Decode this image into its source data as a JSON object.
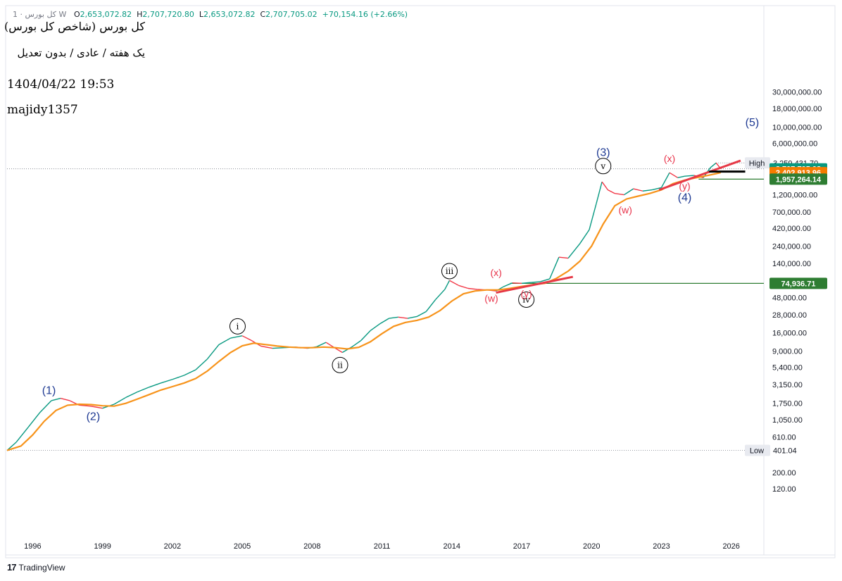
{
  "header": {
    "symbol_info": "1 · کل بورس W",
    "open_label": "O",
    "open_value": "2,653,072.82",
    "high_label": "H",
    "high_value": "2,707,720.80",
    "low_label": "L",
    "low_value": "2,653,072.82",
    "close_label": "C",
    "close_value": "2,707,705.02",
    "change": "+70,154.16 (+2.66%)"
  },
  "annotations": {
    "title": "کل بورس (شاخص کل بورس)",
    "subtitle": "یک هفته / عادی / بدون تعدیل",
    "date": "1404/04/22 19:53",
    "author": "majidy1357"
  },
  "branding": {
    "logo_text": "TradingView",
    "logo_icon": "tradingview-logo-icon"
  },
  "colors": {
    "price": "#089981",
    "price_down": "#f23645",
    "ma": "#f7931a",
    "trend": "#e63946",
    "support": "#2e7d32",
    "wave_main": "#1f3a93",
    "wave_sub": "#e8334a",
    "current": "#089981",
    "ma_badge": "#f57c00",
    "level": "#2e7d32"
  },
  "chart_data": {
    "type": "line",
    "scale": "log",
    "interval": "1 week",
    "x_ticks": [
      "1996",
      "1999",
      "2002",
      "2005",
      "2008",
      "2011",
      "2014",
      "2017",
      "2020",
      "2023",
      "2026"
    ],
    "y_ticks": [
      "30,000,000.00",
      "18,000,000.00",
      "10,000,000.00",
      "6,000,000.00",
      "1,200,000.00",
      "700,000.00",
      "420,000.00",
      "240,000.00",
      "140,000.00",
      "48,000.00",
      "28,000.00",
      "16,000.00",
      "9,000.00",
      "5,400.00",
      "3,150.00",
      "1,750.00",
      "1,050.00",
      "610.00",
      "200.00",
      "120.00"
    ],
    "ylim": [
      100,
      30000000
    ],
    "series": [
      {
        "values": [
          [
            1994.9,
            400
          ],
          [
            1995.3,
            520
          ],
          [
            1995.8,
            820
          ],
          [
            1996.3,
            1300
          ],
          [
            1996.8,
            1900
          ],
          [
            1997.2,
            2050
          ],
          [
            1997.6,
            1900
          ],
          [
            1998.0,
            1650
          ],
          [
            1998.5,
            1600
          ],
          [
            1999.0,
            1500
          ],
          [
            1999.5,
            1700
          ],
          [
            2000.0,
            2100
          ],
          [
            2000.5,
            2500
          ],
          [
            2001.0,
            2900
          ],
          [
            2001.5,
            3300
          ],
          [
            2002.0,
            3700
          ],
          [
            2002.5,
            4200
          ],
          [
            2003.0,
            5000
          ],
          [
            2003.5,
            7000
          ],
          [
            2004.0,
            11000
          ],
          [
            2004.5,
            13500
          ],
          [
            2005.0,
            14500
          ],
          [
            2005.4,
            12500
          ],
          [
            2005.8,
            10500
          ],
          [
            2006.3,
            9800
          ],
          [
            2006.8,
            10000
          ],
          [
            2007.3,
            10200
          ],
          [
            2007.8,
            9800
          ],
          [
            2008.2,
            10300
          ],
          [
            2008.6,
            11800
          ],
          [
            2009.0,
            9800
          ],
          [
            2009.3,
            8600
          ],
          [
            2009.7,
            10200
          ],
          [
            2010.1,
            12500
          ],
          [
            2010.5,
            17000
          ],
          [
            2010.9,
            21000
          ],
          [
            2011.3,
            25000
          ],
          [
            2011.7,
            26000
          ],
          [
            2012.1,
            25000
          ],
          [
            2012.5,
            26500
          ],
          [
            2012.9,
            31000
          ],
          [
            2013.3,
            45000
          ],
          [
            2013.7,
            62000
          ],
          [
            2013.9,
            82000
          ],
          [
            2014.3,
            70000
          ],
          [
            2014.7,
            64000
          ],
          [
            2015.1,
            62000
          ],
          [
            2015.5,
            61000
          ],
          [
            2015.9,
            59000
          ],
          [
            2016.2,
            67000
          ],
          [
            2016.6,
            76000
          ],
          [
            2017.0,
            75000
          ],
          [
            2017.4,
            77000
          ],
          [
            2017.8,
            79000
          ],
          [
            2018.2,
            86000
          ],
          [
            2018.6,
            170000
          ],
          [
            2019.0,
            165000
          ],
          [
            2019.5,
            260000
          ],
          [
            2019.9,
            400000
          ],
          [
            2020.2,
            900000
          ],
          [
            2020.45,
            1800000
          ],
          [
            2020.7,
            1400000
          ],
          [
            2021.0,
            1250000
          ],
          [
            2021.4,
            1200000
          ],
          [
            2021.8,
            1450000
          ],
          [
            2022.2,
            1350000
          ],
          [
            2022.6,
            1400000
          ],
          [
            2023.0,
            1500000
          ],
          [
            2023.35,
            2400000
          ],
          [
            2023.7,
            2050000
          ],
          [
            2024.0,
            2150000
          ],
          [
            2024.4,
            2200000
          ],
          [
            2024.8,
            2050000
          ],
          [
            2025.1,
            2800000
          ],
          [
            2025.35,
            3259431.7
          ],
          [
            2025.55,
            2707705.02
          ]
        ]
      },
      {
        "values": [
          [
            1994.9,
            400
          ],
          [
            1995.5,
            460
          ],
          [
            1996.0,
            650
          ],
          [
            1996.5,
            1000
          ],
          [
            1997.0,
            1400
          ],
          [
            1997.5,
            1650
          ],
          [
            1998.0,
            1700
          ],
          [
            1998.5,
            1680
          ],
          [
            1999.0,
            1620
          ],
          [
            1999.5,
            1600
          ],
          [
            2000.0,
            1750
          ],
          [
            2000.5,
            2000
          ],
          [
            2001.0,
            2300
          ],
          [
            2001.5,
            2650
          ],
          [
            2002.0,
            2950
          ],
          [
            2002.5,
            3300
          ],
          [
            2003.0,
            3800
          ],
          [
            2003.5,
            4800
          ],
          [
            2004.0,
            6500
          ],
          [
            2004.5,
            8600
          ],
          [
            2005.0,
            10600
          ],
          [
            2005.5,
            11500
          ],
          [
            2006.0,
            11000
          ],
          [
            2006.5,
            10500
          ],
          [
            2007.0,
            10200
          ],
          [
            2007.5,
            10000
          ],
          [
            2008.0,
            10000
          ],
          [
            2008.5,
            10200
          ],
          [
            2009.0,
            10000
          ],
          [
            2009.5,
            9600
          ],
          [
            2010.0,
            10100
          ],
          [
            2010.5,
            12000
          ],
          [
            2011.0,
            15500
          ],
          [
            2011.5,
            19500
          ],
          [
            2012.0,
            22000
          ],
          [
            2012.5,
            23500
          ],
          [
            2013.0,
            26000
          ],
          [
            2013.5,
            32000
          ],
          [
            2014.0,
            43000
          ],
          [
            2014.5,
            54000
          ],
          [
            2015.0,
            59000
          ],
          [
            2015.5,
            61000
          ],
          [
            2016.0,
            61000
          ],
          [
            2016.5,
            64000
          ],
          [
            2017.0,
            68000
          ],
          [
            2017.5,
            72000
          ],
          [
            2018.0,
            75000
          ],
          [
            2018.5,
            88000
          ],
          [
            2019.0,
            110000
          ],
          [
            2019.5,
            150000
          ],
          [
            2020.0,
            240000
          ],
          [
            2020.5,
            480000
          ],
          [
            2021.0,
            850000
          ],
          [
            2021.5,
            1050000
          ],
          [
            2022.0,
            1150000
          ],
          [
            2022.5,
            1250000
          ],
          [
            2023.0,
            1400000
          ],
          [
            2023.5,
            1700000
          ],
          [
            2024.0,
            1900000
          ],
          [
            2024.5,
            2050000
          ],
          [
            2025.0,
            2200000
          ],
          [
            2025.55,
            2402913.96
          ]
        ]
      }
    ],
    "price_badges": [
      {
        "label": "High",
        "value": "3,259,431.70",
        "style": "high"
      },
      {
        "value": "2,707,705.02",
        "style": "current"
      },
      {
        "value": "2,402,913.96",
        "style": "ma"
      },
      {
        "value": "1,957,264.14",
        "style": "level"
      },
      {
        "value": "74,936.71",
        "style": "level"
      },
      {
        "label": "Low",
        "value": "401.04",
        "style": "low"
      }
    ],
    "horizontal_levels": [
      {
        "value": 3259431.7,
        "style": "dotted",
        "from": 2025.35
      },
      {
        "value": 2707705.02,
        "style": "dotted",
        "from": 1994.9
      },
      {
        "value": 1957264.14,
        "style": "solid",
        "from": 2024.6
      },
      {
        "value": 74936.71,
        "style": "solid",
        "from": 2016.5
      },
      {
        "value": 401.04,
        "style": "dotted",
        "from": 1994.9
      }
    ],
    "trend_lines": [
      {
        "from": [
          2015.9,
          56000
        ],
        "to": [
          2019.2,
          92000
        ]
      },
      {
        "from": [
          2022.9,
          1400000
        ],
        "to": [
          2026.4,
          3500000
        ]
      }
    ],
    "wave_labels": [
      {
        "text": "(1)",
        "x": 1996.7,
        "y": 2600,
        "style": "main"
      },
      {
        "text": "(2)",
        "x": 1998.6,
        "y": 1150,
        "style": "main"
      },
      {
        "text": "(3)",
        "x": 2020.5,
        "y": 4500000,
        "style": "main"
      },
      {
        "text": "(4)",
        "x": 2024.0,
        "y": 1100000,
        "style": "main"
      },
      {
        "text": "(5)",
        "x": 2026.9,
        "y": 11500000,
        "style": "main"
      },
      {
        "text": "i",
        "x": 2004.8,
        "y": 19500,
        "style": "circle"
      },
      {
        "text": "ii",
        "x": 2009.2,
        "y": 5800,
        "style": "circle"
      },
      {
        "text": "iii",
        "x": 2013.9,
        "y": 110000,
        "style": "circle"
      },
      {
        "text": "iv",
        "x": 2017.2,
        "y": 45000,
        "style": "circle"
      },
      {
        "text": "v",
        "x": 2020.5,
        "y": 2950000,
        "style": "circle"
      },
      {
        "text": "(x)",
        "x": 2015.9,
        "y": 105000,
        "style": "sub"
      },
      {
        "text": "(w)",
        "x": 2015.7,
        "y": 47000,
        "style": "sub"
      },
      {
        "text": "(y)",
        "x": 2017.2,
        "y": 54000,
        "style": "sub"
      },
      {
        "text": "(x)",
        "x": 2023.35,
        "y": 3750000,
        "style": "sub"
      },
      {
        "text": "(w)",
        "x": 2021.45,
        "y": 750000,
        "style": "sub"
      },
      {
        "text": "(y)",
        "x": 2024.0,
        "y": 1580000,
        "style": "sub"
      }
    ]
  }
}
